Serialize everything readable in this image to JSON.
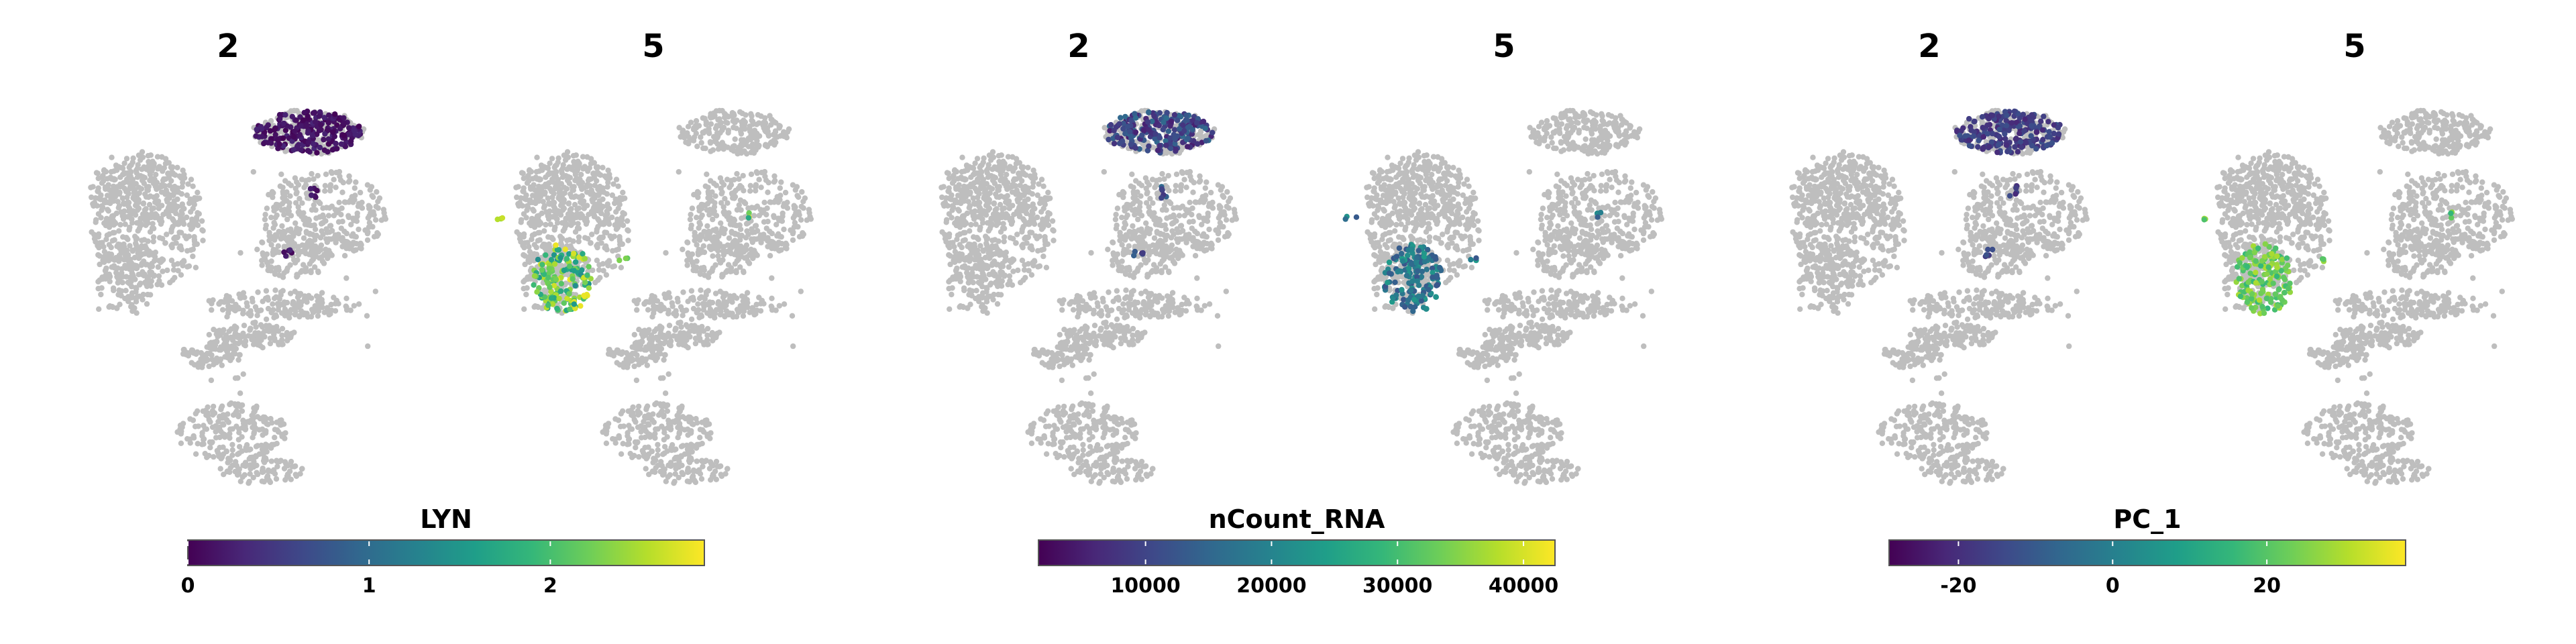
{
  "chart_data": [
    {
      "type": "scatter",
      "feature": "LYN",
      "panels": [
        {
          "title": "2",
          "highlight_range": [
            0.0,
            0.3
          ]
        },
        {
          "title": "5",
          "highlight_range": [
            1.4,
            2.8
          ]
        }
      ],
      "colorbar": {
        "title": "LYN",
        "range": [
          0,
          2.85
        ],
        "ticks": [
          {
            "value": 0,
            "label": "0"
          },
          {
            "value": 1,
            "label": "1"
          },
          {
            "value": 2,
            "label": "2"
          }
        ]
      }
    },
    {
      "type": "scatter",
      "feature": "nCount_RNA",
      "panels": [
        {
          "title": "2",
          "highlight_range": [
            5000,
            16000
          ]
        },
        {
          "title": "5",
          "highlight_range": [
            12000,
            24000
          ]
        }
      ],
      "colorbar": {
        "title": "nCount_RNA",
        "range": [
          1500,
          42500
        ],
        "ticks": [
          {
            "value": 10000,
            "label": "10000"
          },
          {
            "value": 20000,
            "label": "20000"
          },
          {
            "value": 30000,
            "label": "30000"
          },
          {
            "value": 40000,
            "label": "40000"
          }
        ]
      }
    },
    {
      "type": "scatter",
      "feature": "PC_1",
      "panels": [
        {
          "title": "2",
          "highlight_range": [
            -22,
            -12
          ]
        },
        {
          "title": "5",
          "highlight_range": [
            15,
            30
          ]
        }
      ],
      "colorbar": {
        "title": "PC_1",
        "range": [
          -29,
          38
        ],
        "ticks": [
          {
            "value": -20,
            "label": "-20"
          },
          {
            "value": 0,
            "label": "0"
          },
          {
            "value": 20,
            "label": "20"
          }
        ]
      }
    }
  ],
  "colors": {
    "background_cells": "#bebebe",
    "colormap": "viridis",
    "viridis": [
      "#440154",
      "#482878",
      "#3e4989",
      "#31688e",
      "#26828e",
      "#1f9e89",
      "#35b779",
      "#6ece58",
      "#b5de2b",
      "#fde725"
    ]
  }
}
